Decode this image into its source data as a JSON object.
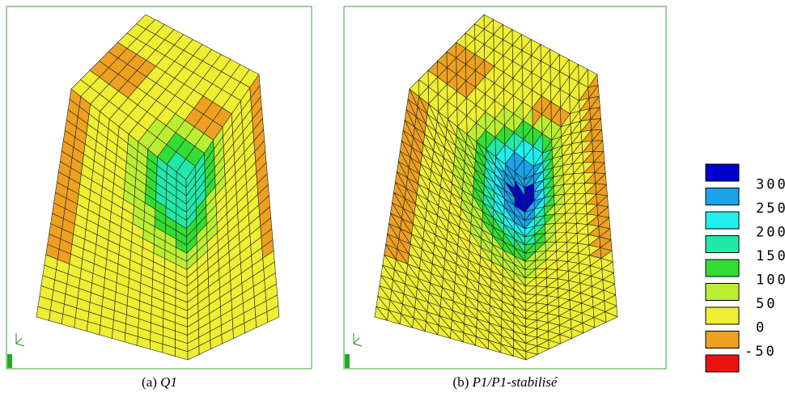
{
  "figure": {
    "panels": [
      {
        "label": "(a)",
        "name": "Q1"
      },
      {
        "label": "(b)",
        "name": "P1/P1-stabilisé"
      }
    ],
    "legend": {
      "colors": [
        "#0000cc",
        "#1aa3e8",
        "#22eeee",
        "#22e8a8",
        "#33dd33",
        "#bbee33",
        "#eeee33",
        "#eea020",
        "#ee1111"
      ],
      "labels": [
        300,
        250,
        200,
        150,
        100,
        50,
        0,
        -50
      ]
    }
  }
}
